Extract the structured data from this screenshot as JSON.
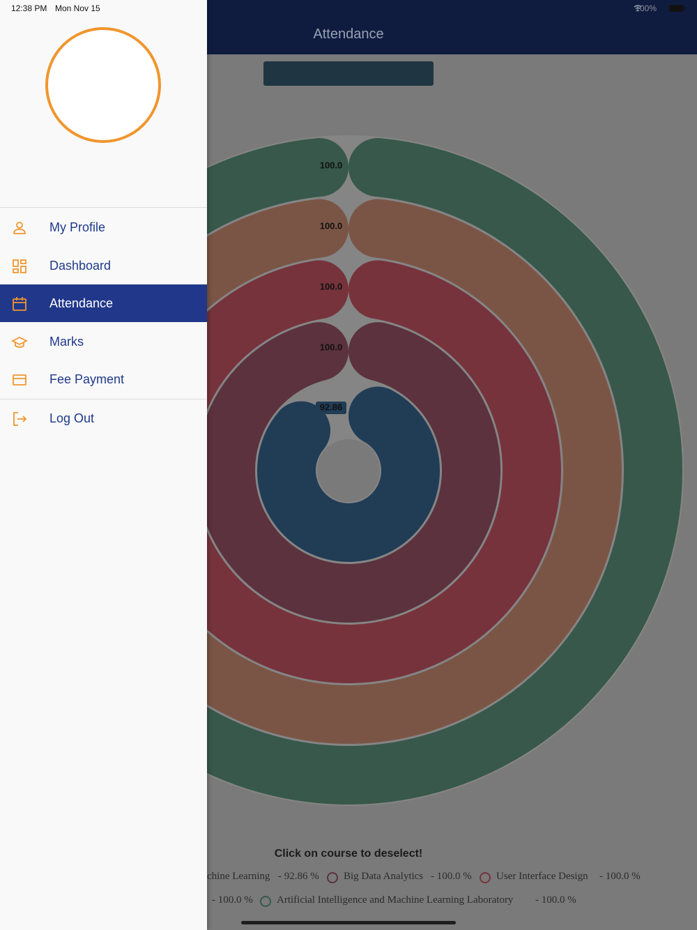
{
  "status_bar": {
    "time": "12:38 PM",
    "date": "Mon Nov 15",
    "battery": "100%"
  },
  "app_bar": {
    "title": "Attendance"
  },
  "drawer": {
    "menu": [
      {
        "label": "My Profile"
      },
      {
        "label": "Dashboard"
      },
      {
        "label": "Attendance",
        "selected": true
      },
      {
        "label": "Marks"
      },
      {
        "label": "Fee Payment"
      },
      {
        "label": "Log Out"
      }
    ]
  },
  "chart": {
    "type": "radialBar",
    "values": [
      92.86,
      100,
      100,
      100,
      100
    ],
    "value_labels": [
      "92.86",
      "100.0",
      "100.0",
      "100.0",
      "100.0"
    ],
    "colors": [
      "#213c55",
      "#5b323e",
      "#76333c",
      "#7a5546",
      "#37584a"
    ],
    "hint": "Click on course to deselect!",
    "legend": [
      {
        "name": "chine Learning",
        "value_label": "- 92.86 %"
      },
      {
        "name": "Big Data Analytics",
        "value_label": "- 100.0 %"
      },
      {
        "name": "User Interface Design",
        "value_label": "- 100.0 %"
      },
      {
        "name": null,
        "value_label": "- 100.0 %"
      },
      {
        "name": "Artificial Intelligence and Machine Learning Laboratory",
        "value_label": "- 100.0 %"
      }
    ]
  }
}
